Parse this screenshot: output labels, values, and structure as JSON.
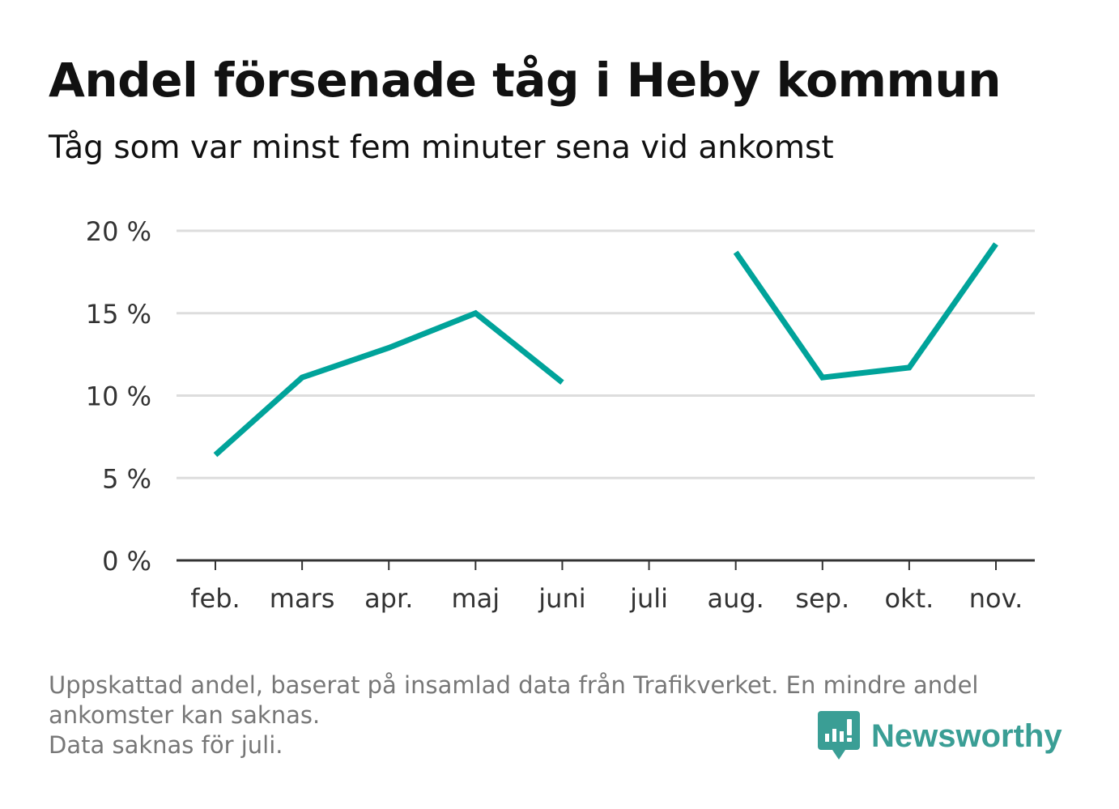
{
  "header": {
    "title": "Andel försenade tåg i Heby kommun",
    "subtitle": "Tåg som var minst fem minuter sena vid ankomst"
  },
  "chart_data": {
    "type": "line",
    "categories": [
      "feb.",
      "mars",
      "apr.",
      "maj",
      "juni",
      "juli",
      "aug.",
      "sep.",
      "okt.",
      "nov."
    ],
    "series": [
      {
        "values": [
          6.4,
          11.1,
          12.9,
          15.0,
          10.8,
          null,
          18.7,
          11.1,
          11.7,
          19.2
        ]
      }
    ],
    "y_ticks": [
      0,
      5,
      10,
      15,
      20
    ],
    "y_tick_labels": [
      "0 %",
      "5 %",
      "10 %",
      "15 %",
      "20 %"
    ],
    "ylim": [
      0,
      20
    ],
    "grid": true,
    "line_color": "#00a39a",
    "grid_color": "#dddddd",
    "axis_color": "#333333"
  },
  "footer": {
    "notes": [
      "Uppskattad andel, baserat på insamlad data från Trafikverket. En mindre andel",
      "ankomster kan saknas.",
      "Data saknas för juli."
    ],
    "brand": {
      "name": "Newsworthy",
      "icon": "newsworthy-logo-icon",
      "color": "#3a9e95"
    }
  }
}
